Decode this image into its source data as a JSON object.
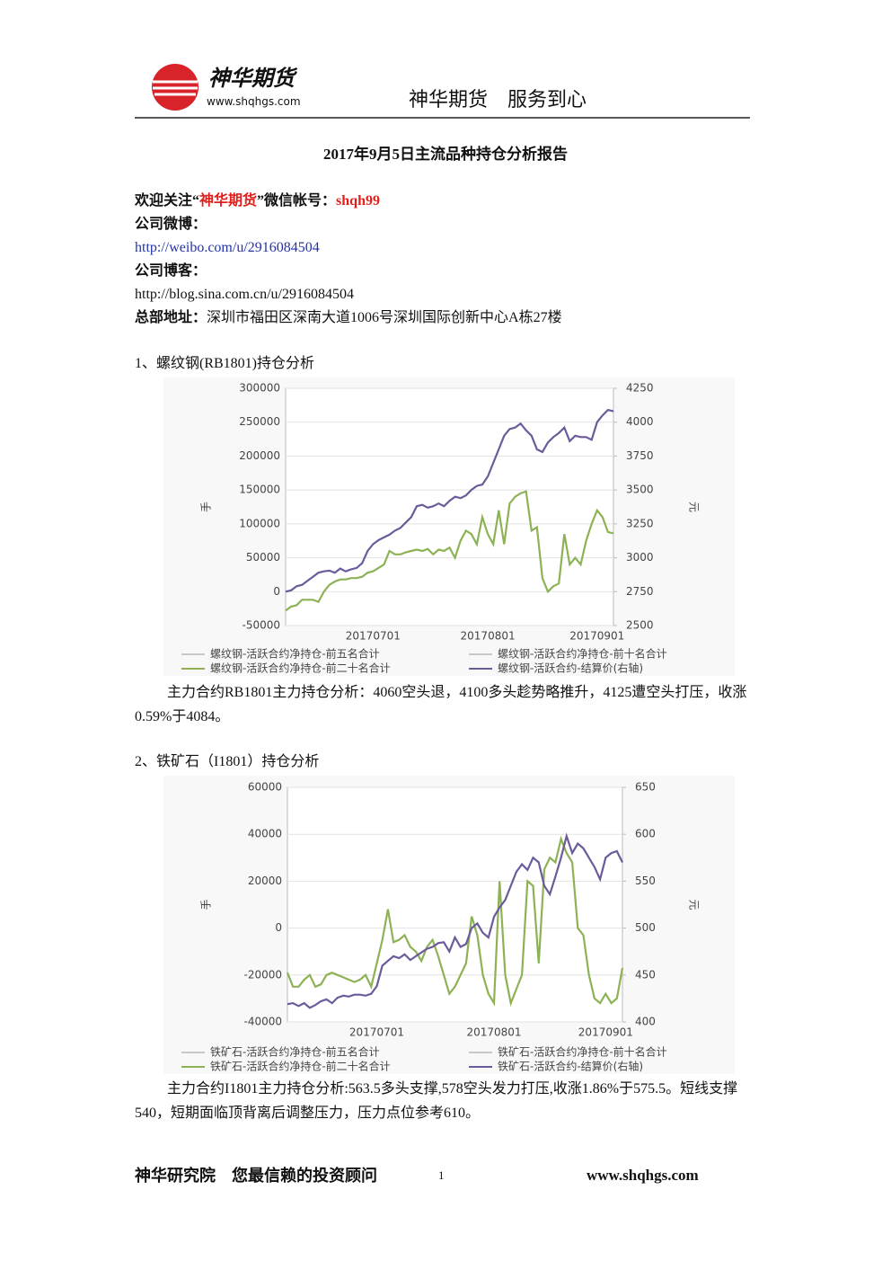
{
  "header": {
    "brand": "神华期货",
    "url": "www.shqhgs.com",
    "tagline": "神华期货　服务到心"
  },
  "title": "2017年9月5日主流品种持仓分析报告",
  "info": {
    "welcome": [
      "欢迎关注“",
      "神华期货",
      "”微信帐号：",
      "shqh99"
    ],
    "weibo_label": "公司微博：",
    "weibo_url": "http://weibo.com/u/2916084504",
    "blog_label": "公司博客：",
    "blog_url": "http://blog.sina.com.cn/u/2916084504",
    "address_label": "总部地址：",
    "address": "深圳市福田区深南大道1006号深圳国际创新中心A栋27楼"
  },
  "sections": [
    {
      "heading": "1、螺纹钢(RB1801)持仓分析",
      "analysis": "主力合约RB1801主力持仓分析：4060空头退，4100多头趁势略推升，4125遭空头打压，收涨0.59%于4084。"
    },
    {
      "heading": "2、铁矿石（I1801）持仓分析",
      "analysis": "主力合约I1801主力持仓分析:563.5多头支撑,578空头发力打压,收涨1.86%于575.5。短线支撑540，短期面临顶背离后调整压力，压力点位参考610。"
    }
  ],
  "chart_data": [
    {
      "type": "line",
      "y_label": "手",
      "y2_label": "元",
      "categories": [
        null,
        null,
        null,
        null,
        null,
        null,
        null,
        null,
        null,
        null,
        null,
        null,
        null,
        null,
        null,
        null,
        "20170701",
        null,
        null,
        null,
        null,
        null,
        null,
        null,
        null,
        null,
        null,
        null,
        null,
        null,
        null,
        null,
        null,
        null,
        null,
        null,
        null,
        "20170801",
        null,
        null,
        null,
        null,
        null,
        null,
        null,
        null,
        null,
        null,
        null,
        null,
        null,
        null,
        null,
        null,
        null,
        null,
        null,
        "20170901",
        null,
        null,
        null
      ],
      "ylim": [
        -50000,
        300000
      ],
      "yticks": [
        -50000,
        0,
        50000,
        100000,
        150000,
        200000,
        250000,
        300000
      ],
      "y2lim": [
        2500,
        4250
      ],
      "y2ticks": [
        2500,
        2750,
        3000,
        3250,
        3500,
        3750,
        4000,
        4250
      ],
      "grid": true,
      "series": [
        {
          "name": "螺纹钢-活跃合约净持仓-前五名合计",
          "color": "#c8c8c8"
        },
        {
          "name": "螺纹钢-活跃合约净持仓-前十名合计",
          "color": "#c8c8c8"
        },
        {
          "name": "螺纹钢-活跃合约净持仓-前二十名合计",
          "color": "#8db255",
          "values": [
            -28000,
            -22000,
            -20000,
            -12000,
            -12000,
            -12000,
            -15000,
            0,
            10000,
            15000,
            18000,
            18000,
            20000,
            20000,
            22000,
            28000,
            30000,
            35000,
            40000,
            60000,
            55000,
            55000,
            58000,
            60000,
            62000,
            60000,
            63000,
            55000,
            62000,
            60000,
            65000,
            50000,
            75000,
            90000,
            85000,
            70000,
            110000,
            85000,
            70000,
            120000,
            70000,
            130000,
            140000,
            145000,
            148000,
            90000,
            95000,
            20000,
            0,
            8000,
            12000,
            85000,
            40000,
            50000,
            40000,
            75000,
            100000,
            120000,
            110000,
            88000,
            86000
          ]
        },
        {
          "name": "螺纹钢-活跃合约-结算价(右轴)",
          "color": "#6b5b9a",
          "axis": "y2",
          "values": [
            2750,
            2760,
            2790,
            2800,
            2830,
            2860,
            2890,
            2900,
            2905,
            2890,
            2920,
            2900,
            2915,
            2925,
            2960,
            3050,
            3100,
            3130,
            3150,
            3170,
            3200,
            3220,
            3260,
            3300,
            3380,
            3390,
            3370,
            3380,
            3400,
            3380,
            3420,
            3450,
            3440,
            3460,
            3500,
            3530,
            3540,
            3600,
            3700,
            3800,
            3900,
            3950,
            3960,
            3990,
            3940,
            3900,
            3800,
            3780,
            3850,
            3890,
            3920,
            3960,
            3860,
            3900,
            3890,
            3890,
            3870,
            4000,
            4050,
            4090,
            4080
          ]
        }
      ]
    },
    {
      "type": "line",
      "y_label": "手",
      "y2_label": "元",
      "categories": [
        null,
        null,
        null,
        null,
        null,
        null,
        null,
        null,
        null,
        null,
        null,
        null,
        null,
        null,
        null,
        null,
        "20170701",
        null,
        null,
        null,
        null,
        null,
        null,
        null,
        null,
        null,
        null,
        null,
        null,
        null,
        null,
        null,
        null,
        null,
        null,
        null,
        null,
        "20170801",
        null,
        null,
        null,
        null,
        null,
        null,
        null,
        null,
        null,
        null,
        null,
        null,
        null,
        null,
        null,
        null,
        null,
        null,
        null,
        "20170901",
        null,
        null,
        null
      ],
      "ylim": [
        -40000,
        60000
      ],
      "yticks": [
        -40000,
        -20000,
        0,
        20000,
        40000,
        60000
      ],
      "y2lim": [
        400,
        650
      ],
      "y2ticks": [
        400,
        450,
        500,
        550,
        600,
        650
      ],
      "grid": true,
      "series": [
        {
          "name": "铁矿石-活跃合约净持仓-前五名合计",
          "color": "#c8c8c8"
        },
        {
          "name": "铁矿石-活跃合约净持仓-前十名合计",
          "color": "#c8c8c8"
        },
        {
          "name": "铁矿石-活跃合约净持仓-前二十名合计",
          "color": "#8db255",
          "values": [
            -19000,
            -25000,
            -25000,
            -22000,
            -20000,
            -25000,
            -24000,
            -20000,
            -19000,
            -20000,
            -21000,
            -22000,
            -23000,
            -22000,
            -20000,
            -25000,
            -15000,
            -5000,
            8000,
            -6000,
            -5000,
            -3000,
            -8000,
            -10000,
            -14000,
            -8000,
            -5000,
            -12000,
            -20000,
            -28000,
            -25000,
            -20000,
            -15000,
            5000,
            -3000,
            -20000,
            -28000,
            -32000,
            20000,
            -20000,
            -32000,
            -26000,
            -20000,
            20000,
            18000,
            -15000,
            25000,
            30000,
            28000,
            38000,
            32000,
            28000,
            0,
            -3000,
            -20000,
            -30000,
            -32000,
            -28000,
            -32000,
            -30000,
            -17000
          ]
        },
        {
          "name": "铁矿石-活跃合约-结算价(右轴)",
          "color": "#6b5b9a",
          "axis": "y2",
          "values": [
            419,
            420,
            417,
            420,
            415,
            418,
            422,
            424,
            420,
            426,
            428,
            427,
            429,
            429,
            428,
            430,
            438,
            460,
            465,
            470,
            468,
            472,
            466,
            470,
            474,
            478,
            480,
            484,
            485,
            475,
            490,
            480,
            483,
            500,
            505,
            495,
            490,
            512,
            522,
            530,
            545,
            560,
            568,
            562,
            575,
            570,
            545,
            536,
            555,
            575,
            598,
            580,
            590,
            585,
            575,
            565,
            552,
            575,
            580,
            582,
            570
          ]
        }
      ]
    }
  ],
  "footer": {
    "left": "神华研究院　您最信赖的投资顾问",
    "page": "1",
    "url": "www.shqhgs.com"
  }
}
